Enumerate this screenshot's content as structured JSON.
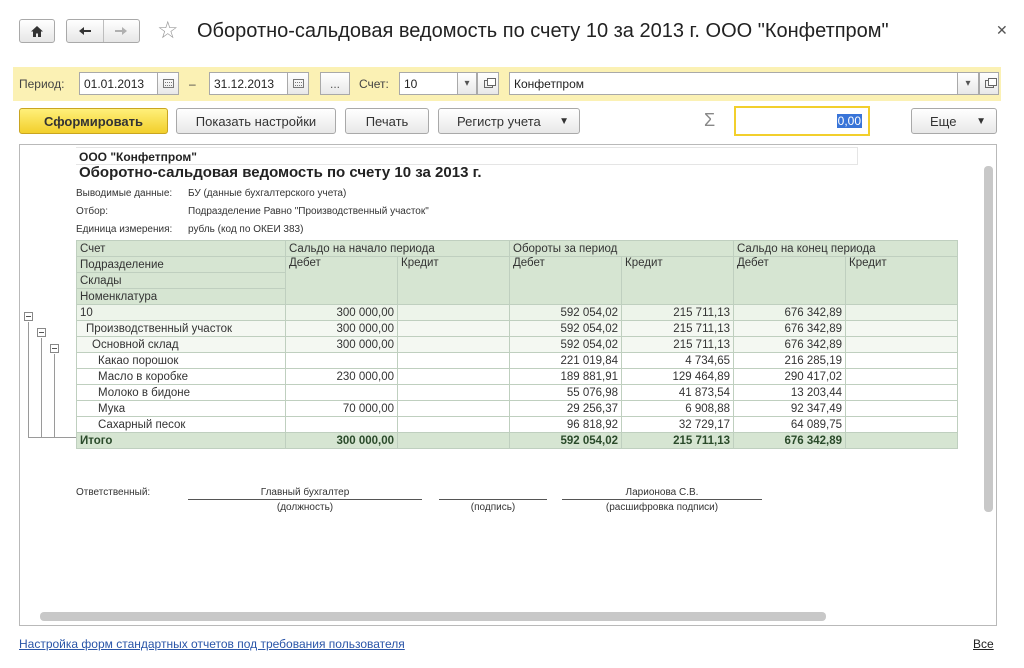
{
  "window": {
    "title": "Оборотно-сальдовая ведомость по счету 10 за 2013 г. ООО \"Конфетпром\"",
    "home_icon": "home-icon",
    "back_icon": "arrow-left-icon",
    "forward_icon": "arrow-right-icon",
    "star_icon": "star-icon",
    "close_icon": "close-icon"
  },
  "period_bar": {
    "period_label": "Период:",
    "date_from": "01.01.2013",
    "dash": "–",
    "date_to": "31.12.2013",
    "dots": "...",
    "account_label": "Счет:",
    "account": "10",
    "organization": "Конфетпром"
  },
  "toolbar": {
    "generate": "Сформировать",
    "show_settings": "Показать настройки",
    "print": "Печать",
    "register": "Регистр учета",
    "sigma": "Σ",
    "sum_value": "0,00",
    "more": "Еще"
  },
  "report": {
    "org": "ООО \"Конфетпром\"",
    "title": "Оборотно-сальдовая ведомость по счету 10 за 2013 г.",
    "meta": [
      {
        "label": "Выводимые данные:",
        "value": "БУ (данные бухгалтерского учета)"
      },
      {
        "label": "Отбор:",
        "value": "Подразделение Равно \"Производственный участок\""
      },
      {
        "label": "Единица измерения:",
        "value": "рубль (код по ОКЕИ 383)"
      }
    ],
    "headers": {
      "account": "Счет",
      "department": "Подразделение",
      "warehouses": "Склады",
      "nomenclature": "Номенклатура",
      "opening": "Сальдо на начало периода",
      "turnover": "Обороты за период",
      "closing": "Сальдо на конец периода",
      "debit": "Дебет",
      "credit": "Кредит"
    },
    "rows": [
      {
        "name": "10",
        "open_d": "300 000,00",
        "open_c": "",
        "turn_d": "592 054,02",
        "turn_c": "215 711,13",
        "close_d": "676 342,89",
        "close_c": ""
      },
      {
        "name": "Производственный участок",
        "open_d": "300 000,00",
        "open_c": "",
        "turn_d": "592 054,02",
        "turn_c": "215 711,13",
        "close_d": "676 342,89",
        "close_c": ""
      },
      {
        "name": "Основной склад",
        "open_d": "300 000,00",
        "open_c": "",
        "turn_d": "592 054,02",
        "turn_c": "215 711,13",
        "close_d": "676 342,89",
        "close_c": ""
      },
      {
        "name": "Какао порошок",
        "open_d": "",
        "open_c": "",
        "turn_d": "221 019,84",
        "turn_c": "4 734,65",
        "close_d": "216 285,19",
        "close_c": ""
      },
      {
        "name": "Масло в коробке",
        "open_d": "230 000,00",
        "open_c": "",
        "turn_d": "189 881,91",
        "turn_c": "129 464,89",
        "close_d": "290 417,02",
        "close_c": ""
      },
      {
        "name": "Молоко в бидоне",
        "open_d": "",
        "open_c": "",
        "turn_d": "55 076,98",
        "turn_c": "41 873,54",
        "close_d": "13 203,44",
        "close_c": ""
      },
      {
        "name": "Мука",
        "open_d": "70 000,00",
        "open_c": "",
        "turn_d": "29 256,37",
        "turn_c": "6 908,88",
        "close_d": "92 347,49",
        "close_c": ""
      },
      {
        "name": "Сахарный песок",
        "open_d": "",
        "open_c": "",
        "turn_d": "96 818,92",
        "turn_c": "32 729,17",
        "close_d": "64 089,75",
        "close_c": ""
      }
    ],
    "total": {
      "name": "Итого",
      "open_d": "300 000,00",
      "open_c": "",
      "turn_d": "592 054,02",
      "turn_c": "215 711,13",
      "close_d": "676 342,89",
      "close_c": ""
    },
    "signature": {
      "responsible": "Ответственный:",
      "position": "Главный бухгалтер",
      "position_caption": "(должность)",
      "sign_caption": "(подпись)",
      "name": "Ларионова С.В.",
      "name_caption": "(расшифровка подписи)"
    }
  },
  "footer": {
    "settings_link": "Настройка форм стандартных отчетов под требования пользователя",
    "all_link": "Все"
  }
}
